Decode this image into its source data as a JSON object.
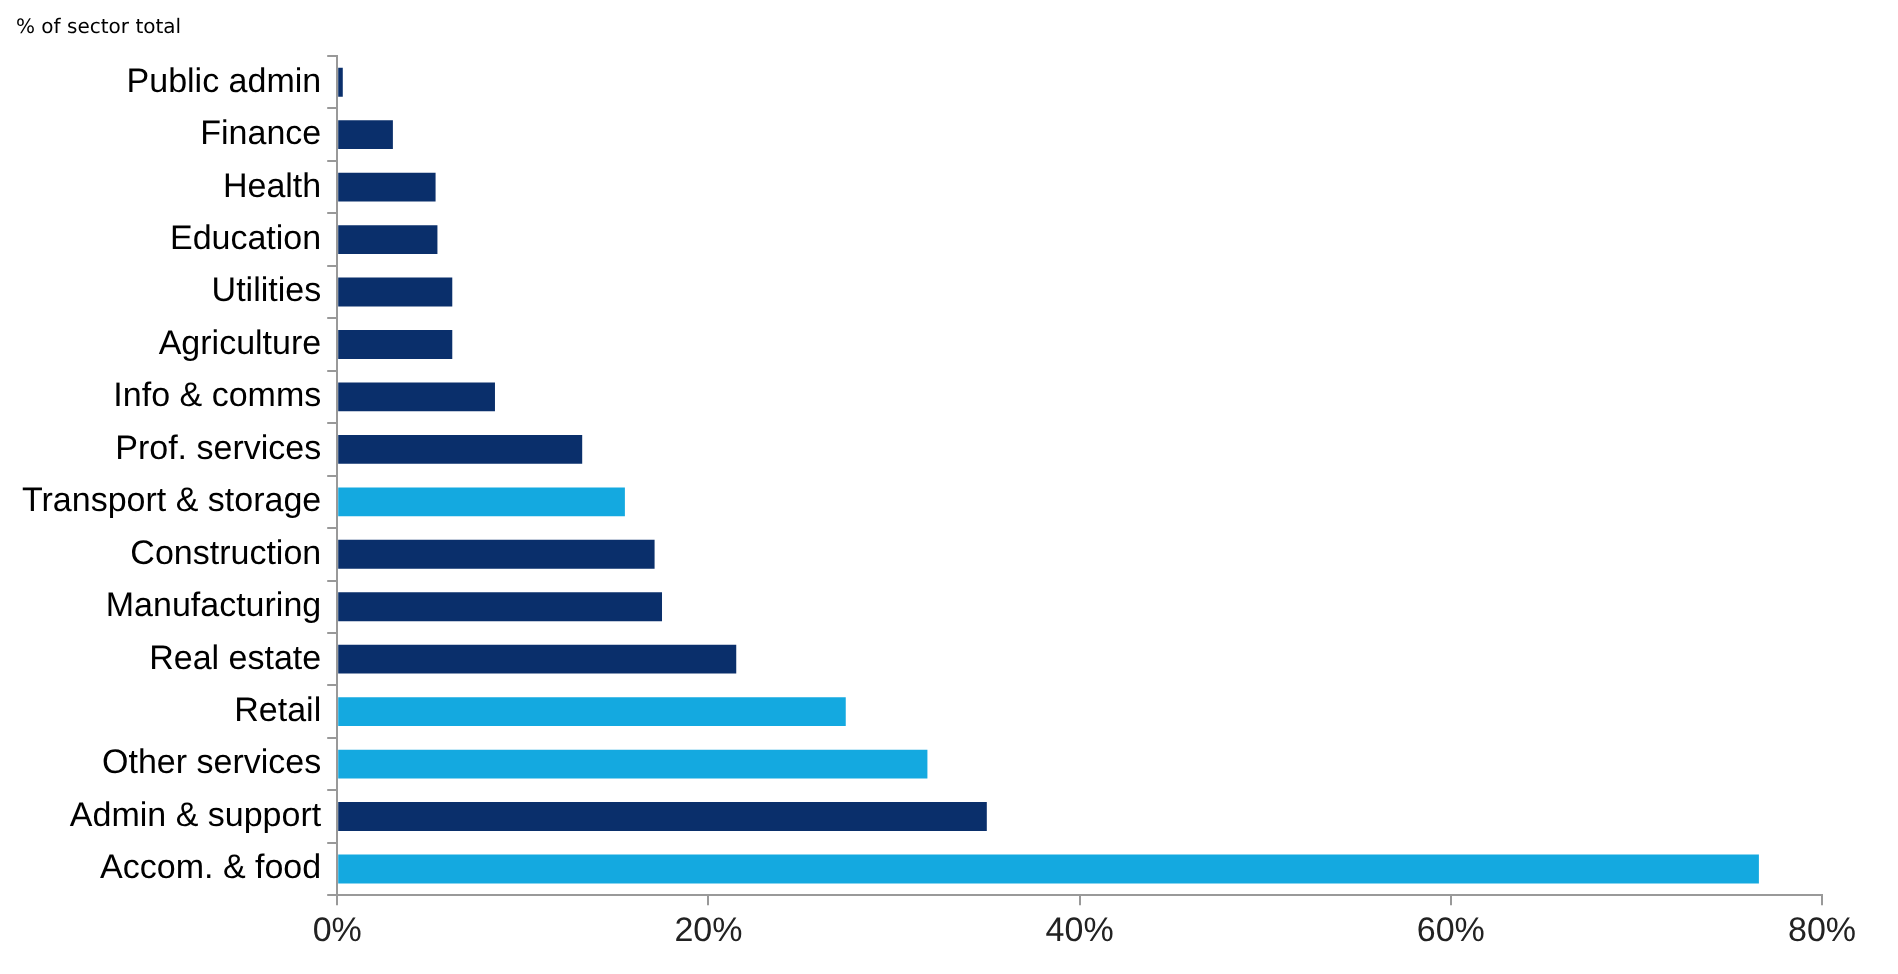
{
  "chart_data": {
    "type": "bar",
    "orientation": "horizontal",
    "subtitle": "% of sector total",
    "categories": [
      "Public admin",
      "Finance",
      "Health",
      "Education",
      "Utilities",
      "Agriculture",
      "Info & comms",
      "Prof. services",
      "Transport & storage",
      "Construction",
      "Manufacturing",
      "Real estate",
      "Retail",
      "Other services",
      "Admin & support",
      "Accom. & food"
    ],
    "values": [
      0.3,
      3.0,
      5.3,
      5.4,
      6.2,
      6.2,
      8.5,
      13.2,
      15.5,
      17.1,
      17.5,
      21.5,
      27.4,
      31.8,
      35.0,
      76.6
    ],
    "colors": [
      "#0a2f6b",
      "#0a2f6b",
      "#0a2f6b",
      "#0a2f6b",
      "#0a2f6b",
      "#0a2f6b",
      "#0a2f6b",
      "#0a2f6b",
      "#14a9e0",
      "#0a2f6b",
      "#0a2f6b",
      "#0a2f6b",
      "#14a9e0",
      "#14a9e0",
      "#0a2f6b",
      "#14a9e0"
    ],
    "xlim": [
      0,
      80
    ],
    "xticks": [
      {
        "value": 0,
        "label": "0%"
      },
      {
        "value": 20,
        "label": "20%"
      },
      {
        "value": 40,
        "label": "40%"
      },
      {
        "value": 60,
        "label": "60%"
      },
      {
        "value": 80,
        "label": "80%"
      }
    ],
    "grid": false,
    "legend": false
  }
}
